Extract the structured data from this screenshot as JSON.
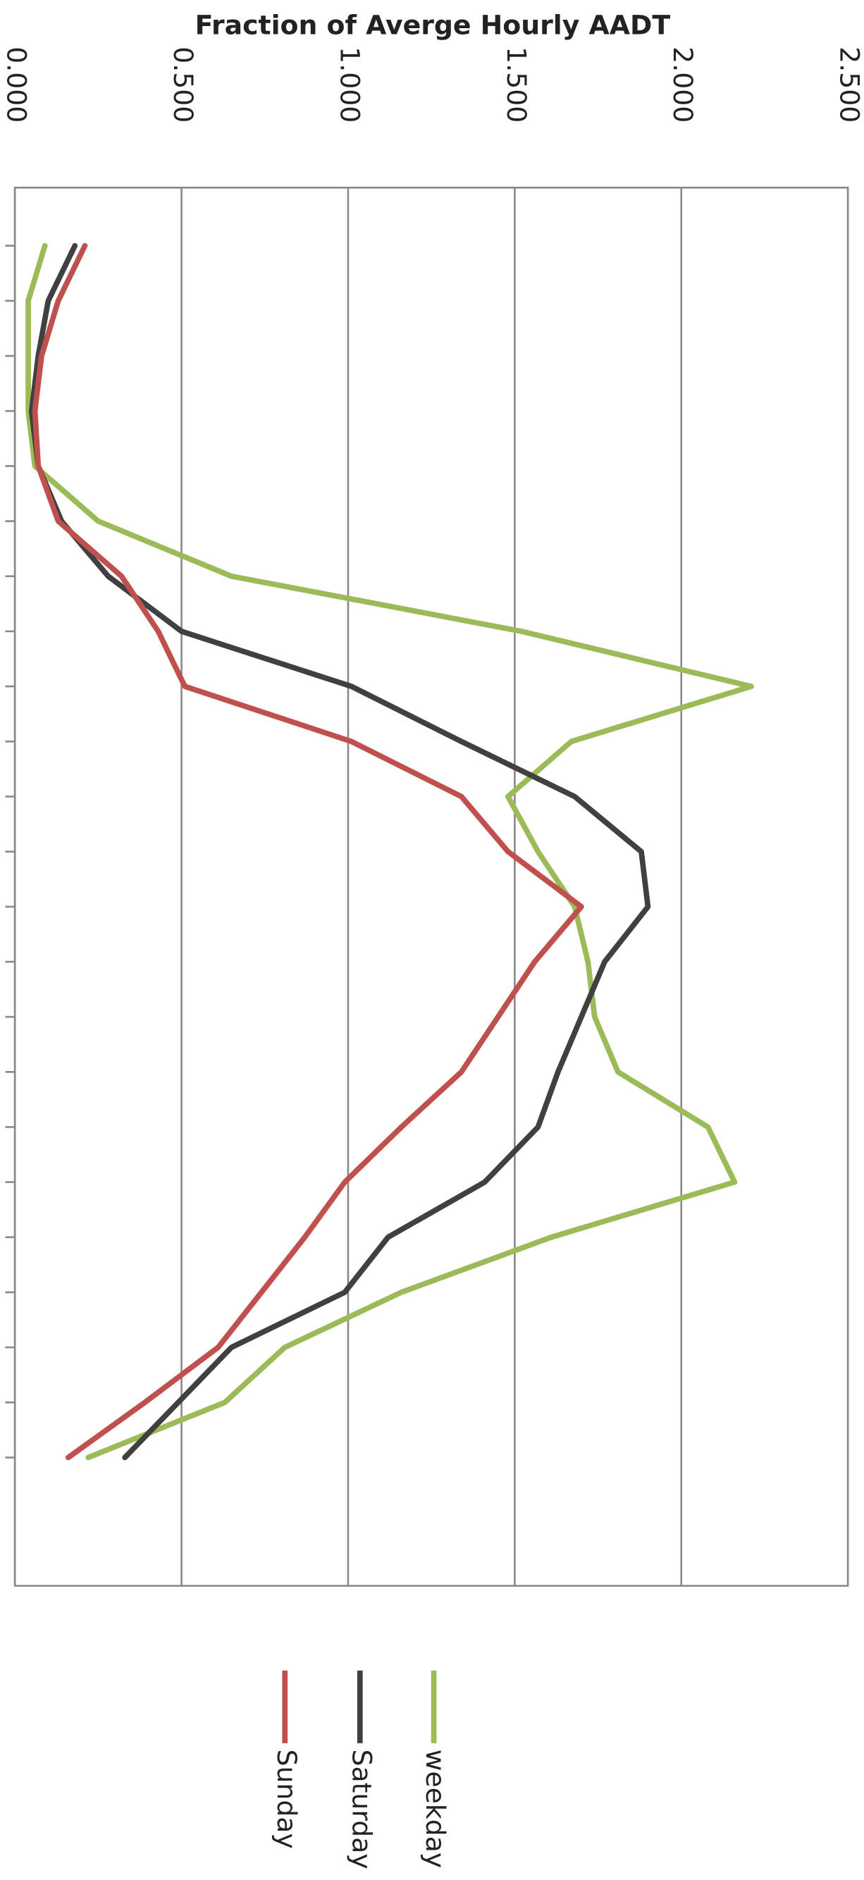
{
  "chart_data": {
    "type": "line",
    "title": "Fraction of Averge Hourly AADT",
    "orientation": "horizontal",
    "categories": [
      null,
      null,
      null,
      null,
      null,
      null,
      null,
      null,
      null,
      null,
      null,
      null,
      null,
      null,
      null,
      null,
      null,
      null,
      null,
      null,
      null,
      null,
      null
    ],
    "series": [
      {
        "name": "weekday",
        "color": "#9bbb59",
        "values": [
          0.09,
          0.04,
          0.04,
          0.04,
          0.06,
          0.25,
          0.65,
          1.52,
          2.21,
          1.67,
          1.48,
          1.57,
          1.68,
          1.72,
          1.74,
          1.81,
          2.08,
          2.16,
          1.61,
          1.16,
          0.81,
          0.63,
          0.22
        ]
      },
      {
        "name": "Saturday",
        "color": "#404040",
        "values": [
          0.18,
          0.1,
          0.07,
          0.05,
          0.07,
          0.14,
          0.28,
          0.5,
          1.01,
          1.34,
          1.68,
          1.88,
          1.9,
          1.77,
          1.7,
          1.63,
          1.57,
          1.41,
          1.12,
          0.99,
          0.65,
          0.49,
          0.33
        ]
      },
      {
        "name": "Sunday",
        "color": "#c0504d",
        "values": [
          0.21,
          0.13,
          0.08,
          0.06,
          0.07,
          0.13,
          0.32,
          0.43,
          0.51,
          1.01,
          1.34,
          1.48,
          1.7,
          1.56,
          1.45,
          1.34,
          1.16,
          0.99,
          0.87,
          0.74,
          0.61,
          0.39,
          0.16
        ]
      }
    ],
    "ylim": [
      0,
      2.5
    ],
    "yticks": [
      {
        "value": 0,
        "label": "0.000"
      },
      {
        "value": 0.5,
        "label": "0.500"
      },
      {
        "value": 1,
        "label": "1.000"
      },
      {
        "value": 1.5,
        "label": "1.500"
      },
      {
        "value": 2,
        "label": "2.000"
      },
      {
        "value": 2.5,
        "label": "2.500"
      }
    ],
    "grid": true
  }
}
